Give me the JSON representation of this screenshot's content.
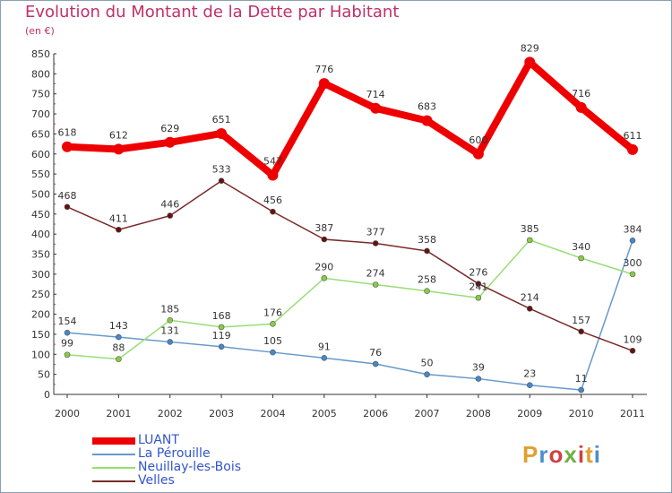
{
  "title": "Evolution du Montant de la Dette par Habitant",
  "subtitle": "(en €)",
  "brand": {
    "text": "Proxiti",
    "colors": [
      "#e0a030",
      "#4a8fd0",
      "#d04040",
      "#70b040",
      "#d04040",
      "#e0a030",
      "#4a8fd0"
    ]
  },
  "colors": {
    "title": "#c0306a",
    "axis": "#333333",
    "grid_tick": "#cc3333",
    "legend_text": "#3355cc"
  },
  "chart_data": {
    "type": "line",
    "title": "Evolution du Montant de la Dette par Habitant",
    "subtitle": "(en €)",
    "xlabel": "",
    "ylabel": "",
    "ylim": [
      0,
      850
    ],
    "yticks": [
      0,
      50,
      100,
      150,
      200,
      250,
      300,
      350,
      400,
      450,
      500,
      550,
      600,
      650,
      700,
      750,
      800,
      850
    ],
    "x": [
      "2000",
      "2001",
      "2002",
      "2003",
      "2004",
      "2005",
      "2006",
      "2007",
      "2008",
      "2009",
      "2010",
      "2011"
    ],
    "legend_position": "bottom-left",
    "series": [
      {
        "name": "LUANT",
        "color": "#ee0000",
        "width": 8,
        "values": [
          618,
          612,
          629,
          651,
          547,
          776,
          714,
          683,
          600,
          829,
          716,
          611
        ],
        "labels": [
          "618",
          "612",
          "629",
          "651",
          "547",
          "776",
          "714",
          "683",
          "600",
          "829",
          "716",
          "611"
        ]
      },
      {
        "name": "La Pérouille",
        "color": "#6699cc",
        "marker_color": "#4488cc",
        "width": 1.5,
        "values": [
          154,
          143,
          131,
          119,
          105,
          91,
          76,
          50,
          39,
          23,
          11,
          384
        ],
        "labels": [
          "154",
          "143",
          "131",
          "119",
          "105",
          "91",
          "76",
          "50",
          "39",
          "23",
          "11",
          "384"
        ]
      },
      {
        "name": "Neuillay-les-Bois",
        "color": "#99dd77",
        "marker_color": "#88cc44",
        "width": 1.5,
        "values": [
          99,
          88,
          185,
          168,
          176,
          290,
          274,
          258,
          241,
          385,
          340,
          300
        ],
        "labels": [
          "99",
          "88",
          "185",
          "168",
          "176",
          "290",
          "274",
          "258",
          "241",
          "385",
          "340",
          "300"
        ]
      },
      {
        "name": "Velles",
        "color": "#7a2a2a",
        "marker_color": "#661111",
        "width": 1.5,
        "values": [
          468,
          411,
          446,
          533,
          456,
          387,
          377,
          358,
          276,
          214,
          157,
          109
        ],
        "labels": [
          "468",
          "411",
          "446",
          "533",
          "456",
          "387",
          "377",
          "358",
          "276",
          "214",
          "157",
          "109"
        ]
      }
    ]
  }
}
